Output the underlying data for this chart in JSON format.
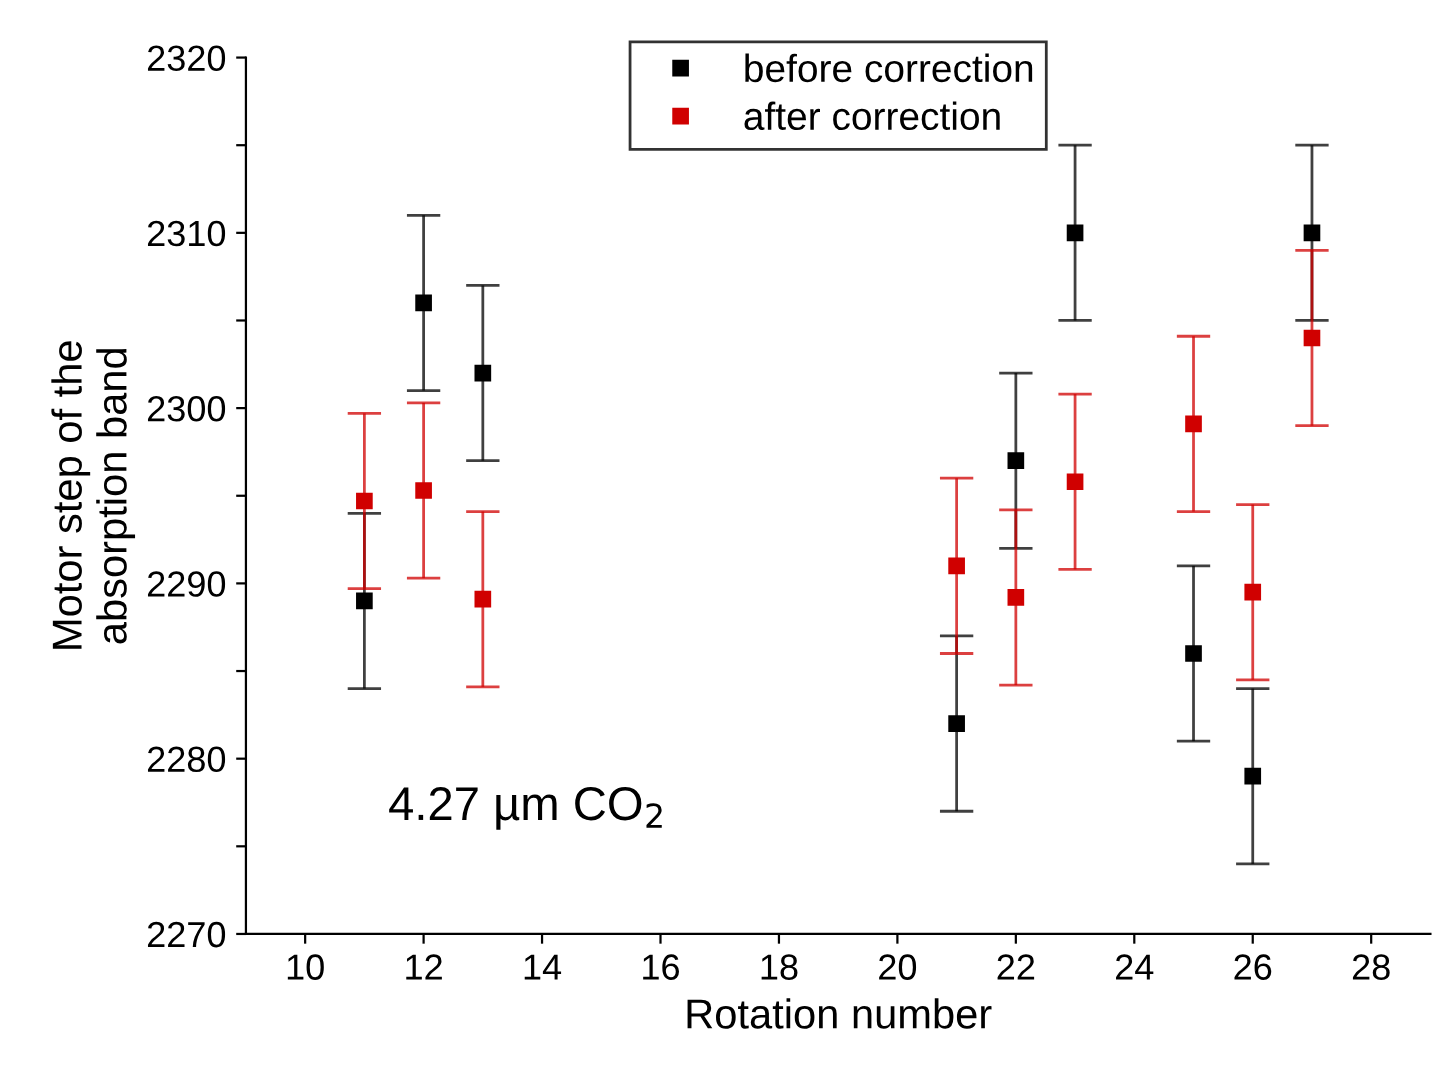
{
  "chart_data": {
    "type": "scatter",
    "xlabel": "Rotation number",
    "ylabel": "Motor step of the\nabsorption band",
    "xlim": [
      9,
      29
    ],
    "xticks": [
      10,
      12,
      14,
      16,
      18,
      20,
      22,
      24,
      26,
      28
    ],
    "ylim": [
      2270,
      2320
    ],
    "yticks": [
      2270,
      {
        "value": 2275,
        "label": null
      },
      2280,
      {
        "value": 2285,
        "label": null
      },
      2290,
      {
        "value": 2295,
        "label": null
      },
      2300,
      {
        "value": 2305,
        "label": null
      },
      2310,
      {
        "value": 2315,
        "label": null
      },
      2320
    ],
    "marker": "square",
    "legend": "top",
    "grid": false,
    "annotations": [
      "4.27 µm CO$_{2}$"
    ],
    "series": [
      {
        "name": "before correction",
        "color": "#000000",
        "x": [
          11,
          12,
          13,
          21,
          22,
          23,
          25,
          26,
          27
        ],
        "values": [
          2289,
          2306,
          2302,
          2282,
          2297,
          2310,
          2286,
          2279,
          2310
        ],
        "errors": [
          5,
          5,
          5,
          5,
          5,
          5,
          5,
          5,
          5
        ]
      },
      {
        "name": "after correction",
        "color": "#d00000",
        "x": [
          11,
          12,
          13,
          21,
          22,
          23,
          25,
          26,
          27
        ],
        "values": [
          2294.7,
          2295.3,
          2289.1,
          2291,
          2289.2,
          2295.8,
          2299.1,
          2289.5,
          2304
        ],
        "errors": [
          5,
          5,
          5,
          5,
          5,
          5,
          5,
          5,
          5
        ]
      }
    ]
  }
}
